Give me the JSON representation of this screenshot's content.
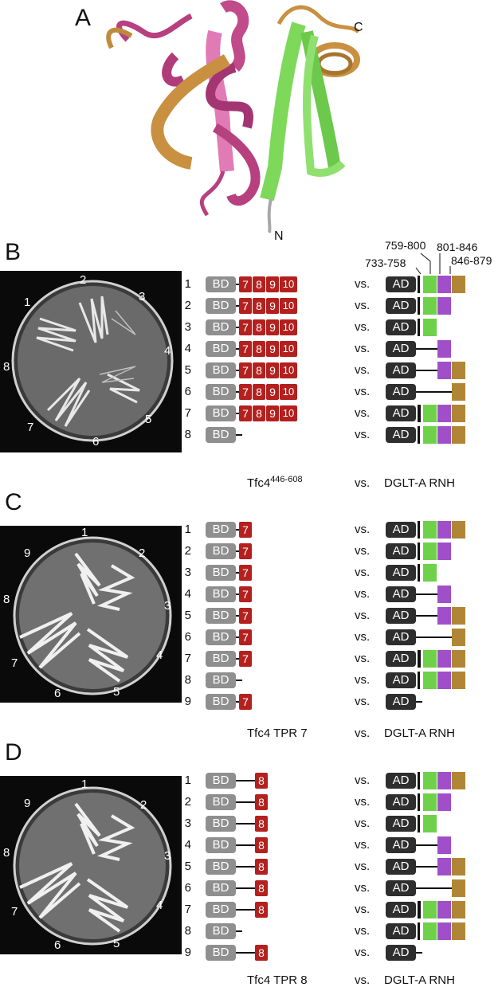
{
  "colors": {
    "bd": "#8f8f8f",
    "ad": "#2e2e2e",
    "tpr": "#b3201e",
    "seg_733_758": "#111111",
    "seg_759_800": "#6fd04a",
    "seg_801_846": "#a04fc9",
    "seg_846_879": "#b08636",
    "protein_pink": "#c04a8a",
    "protein_green": "#7ed85a",
    "protein_orange": "#c89040"
  },
  "panel_a": {
    "letter": "A",
    "label_c": "C",
    "label_n": "N"
  },
  "ranges": [
    "733-758",
    "759-800",
    "801-846",
    "846-879"
  ],
  "panel_b": {
    "letter": "B",
    "plate_labels": [
      "1",
      "2",
      "3",
      "4",
      "5",
      "6",
      "7",
      "8"
    ],
    "rows": [
      {
        "num": "1",
        "bd": "BD",
        "tprs": [
          "7",
          "8",
          "9",
          "10"
        ],
        "vs": "vs.",
        "ad": "AD",
        "construct": "full"
      },
      {
        "num": "2",
        "bd": "BD",
        "tprs": [
          "7",
          "8",
          "9",
          "10"
        ],
        "vs": "vs.",
        "ad": "AD",
        "construct": "bar-green-purple"
      },
      {
        "num": "3",
        "bd": "BD",
        "tprs": [
          "7",
          "8",
          "9",
          "10"
        ],
        "vs": "vs.",
        "ad": "AD",
        "construct": "bar-green"
      },
      {
        "num": "4",
        "bd": "BD",
        "tprs": [
          "7",
          "8",
          "9",
          "10"
        ],
        "vs": "vs.",
        "ad": "AD",
        "construct": "line-purple"
      },
      {
        "num": "5",
        "bd": "BD",
        "tprs": [
          "7",
          "8",
          "9",
          "10"
        ],
        "vs": "vs.",
        "ad": "AD",
        "construct": "line-purple-orange"
      },
      {
        "num": "6",
        "bd": "BD",
        "tprs": [
          "7",
          "8",
          "9",
          "10"
        ],
        "vs": "vs.",
        "ad": "AD",
        "construct": "line-orange"
      },
      {
        "num": "7",
        "bd": "BD",
        "tprs": [
          "7",
          "8",
          "9",
          "10"
        ],
        "vs": "vs.",
        "ad": "AD",
        "construct": "thickbar-full"
      },
      {
        "num": "8",
        "bd": "BD",
        "tprs": [],
        "vs": "vs.",
        "ad": "AD",
        "construct": "full"
      }
    ],
    "caption_left": "Tfc4",
    "caption_left_sup": "446-608",
    "caption_vs": "vs.",
    "caption_right": "DGLT-A RNH"
  },
  "panel_c": {
    "letter": "C",
    "plate_labels": [
      "1",
      "2",
      "3",
      "4",
      "5",
      "6",
      "7",
      "8",
      "9"
    ],
    "rows": [
      {
        "num": "1",
        "bd": "BD",
        "tpr": "7",
        "vs": "vs.",
        "ad": "AD",
        "construct": "full"
      },
      {
        "num": "2",
        "bd": "BD",
        "tpr": "7",
        "vs": "vs.",
        "ad": "AD",
        "construct": "bar-green-purple"
      },
      {
        "num": "3",
        "bd": "BD",
        "tpr": "7",
        "vs": "vs.",
        "ad": "AD",
        "construct": "bar-green"
      },
      {
        "num": "4",
        "bd": "BD",
        "tpr": "7",
        "vs": "vs.",
        "ad": "AD",
        "construct": "line-purple"
      },
      {
        "num": "5",
        "bd": "BD",
        "tpr": "7",
        "vs": "vs.",
        "ad": "AD",
        "construct": "line-purple-orange"
      },
      {
        "num": "6",
        "bd": "BD",
        "tpr": "7",
        "vs": "vs.",
        "ad": "AD",
        "construct": "line-orange"
      },
      {
        "num": "7",
        "bd": "BD",
        "tpr": "7",
        "vs": "vs.",
        "ad": "AD",
        "construct": "thickbar-full"
      },
      {
        "num": "8",
        "bd": "BD",
        "tpr": "",
        "vs": "vs.",
        "ad": "AD",
        "construct": "full"
      },
      {
        "num": "9",
        "bd": "BD",
        "tpr": "7",
        "vs": "vs.",
        "ad": "AD",
        "construct": "none"
      }
    ],
    "caption_left": "Tfc4 TPR 7",
    "caption_vs": "vs.",
    "caption_right": "DGLT-A RNH"
  },
  "panel_d": {
    "letter": "D",
    "plate_labels": [
      "1",
      "2",
      "3",
      "4",
      "5",
      "6",
      "7",
      "8",
      "9"
    ],
    "rows": [
      {
        "num": "1",
        "bd": "BD",
        "tpr": "8",
        "vs": "vs.",
        "ad": "AD",
        "construct": "full"
      },
      {
        "num": "2",
        "bd": "BD",
        "tpr": "8",
        "vs": "vs.",
        "ad": "AD",
        "construct": "bar-green-purple"
      },
      {
        "num": "3",
        "bd": "BD",
        "tpr": "8",
        "vs": "vs.",
        "ad": "AD",
        "construct": "bar-green"
      },
      {
        "num": "4",
        "bd": "BD",
        "tpr": "8",
        "vs": "vs.",
        "ad": "AD",
        "construct": "line-purple"
      },
      {
        "num": "5",
        "bd": "BD",
        "tpr": "8",
        "vs": "vs.",
        "ad": "AD",
        "construct": "line-purple-orange"
      },
      {
        "num": "6",
        "bd": "BD",
        "tpr": "8",
        "vs": "vs.",
        "ad": "AD",
        "construct": "line-orange"
      },
      {
        "num": "7",
        "bd": "BD",
        "tpr": "8",
        "vs": "vs.",
        "ad": "AD",
        "construct": "thickbar-full"
      },
      {
        "num": "8",
        "bd": "BD",
        "tpr": "",
        "vs": "vs.",
        "ad": "AD",
        "construct": "full"
      },
      {
        "num": "9",
        "bd": "BD",
        "tpr": "8",
        "vs": "vs.",
        "ad": "AD",
        "construct": "none"
      }
    ],
    "caption_left": "Tfc4 TPR 8",
    "caption_vs": "vs.",
    "caption_right": "DGLT-A RNH"
  }
}
